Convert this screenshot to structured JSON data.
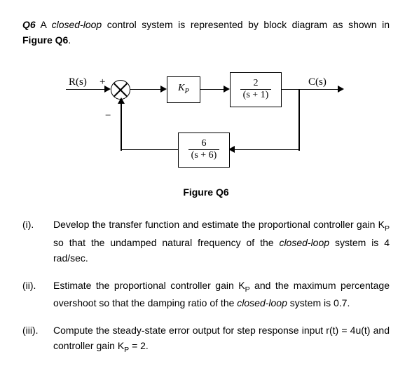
{
  "question": {
    "number": "Q6",
    "text_before_italic": "A ",
    "italic_phrase": "closed-loop",
    "text_after_italic": " control system is represented by block diagram as shown in ",
    "figure_ref": "Figure Q6",
    "period": "."
  },
  "diagram": {
    "input_label": "R(s)",
    "plus": "+",
    "minus": "−",
    "kp": "K",
    "kp_sub": "P",
    "g_num": "2",
    "g_den": "(s + 1)",
    "h_num": "6",
    "h_den": "(s + 6)",
    "output_label": "C(s)"
  },
  "figure_caption": "Figure Q6",
  "parts": [
    {
      "label": "(i).",
      "segments": [
        {
          "t": "Develop the transfer function and estimate the proportional controller gain K"
        },
        {
          "sub": "P"
        },
        {
          "t": " so that the undamped natural frequency of the "
        },
        {
          "i": "closed-loop"
        },
        {
          "t": " system is 4 rad/sec."
        }
      ]
    },
    {
      "label": "(ii).",
      "segments": [
        {
          "t": "Estimate the proportional controller gain K"
        },
        {
          "sub": "P"
        },
        {
          "t": " and the maximum percentage overshoot so that the damping ratio of the "
        },
        {
          "i": "closed-loop"
        },
        {
          "t": " system is 0.7."
        }
      ]
    },
    {
      "label": "(iii).",
      "segments": [
        {
          "t": "Compute the steady-state error output for step response input  r(t) = 4u(t) and controller gain K"
        },
        {
          "sub": "P"
        },
        {
          "t": " = 2."
        }
      ]
    }
  ]
}
